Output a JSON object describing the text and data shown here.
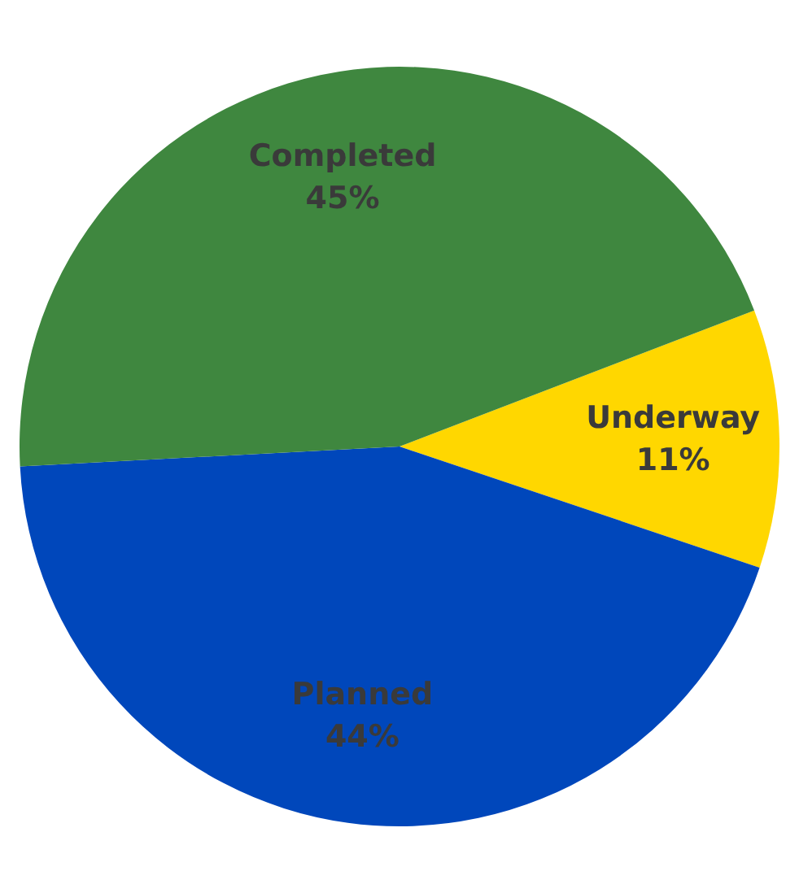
{
  "chart_data": {
    "type": "pie",
    "categories": [
      "Underway",
      "Planned",
      "Completed"
    ],
    "values": [
      11,
      44,
      45
    ],
    "value_labels": [
      "11%",
      "44%",
      "45%"
    ],
    "colors": [
      "#ffd700",
      "#0047bb",
      "#3f873f"
    ],
    "legend": false
  }
}
